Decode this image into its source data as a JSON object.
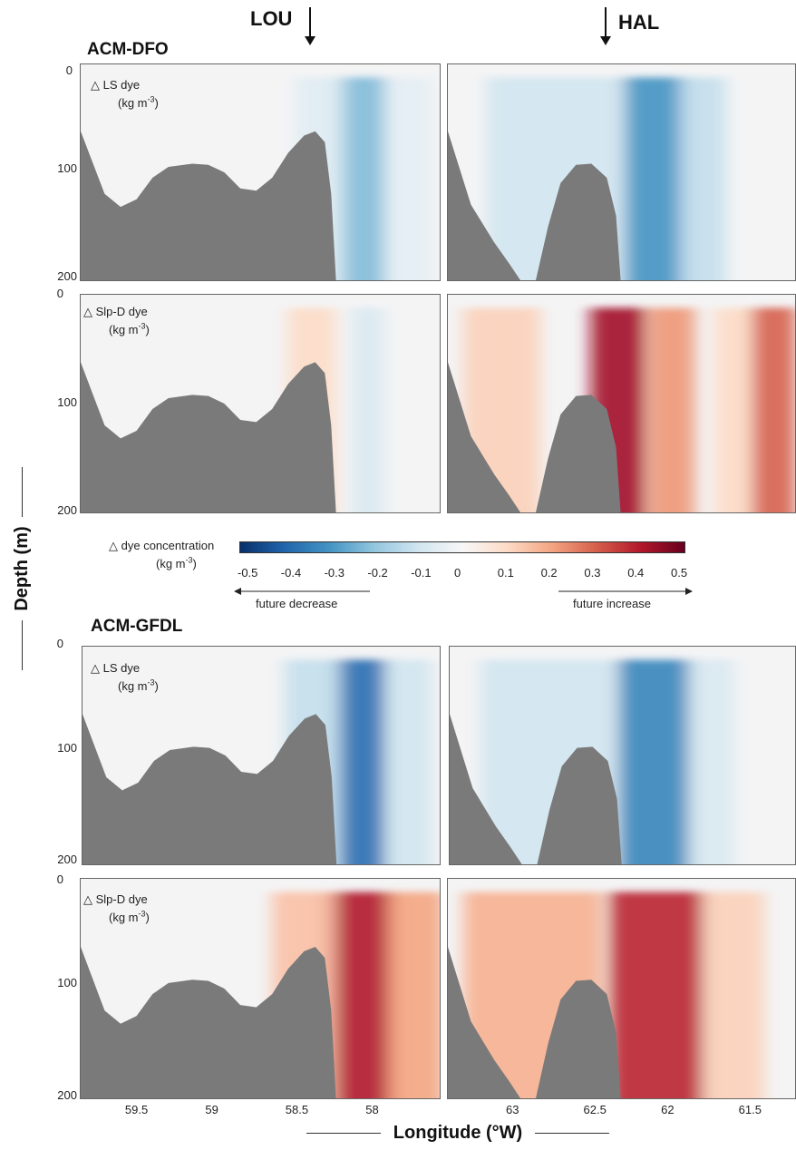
{
  "arrows": {
    "left": "LOU",
    "right": "HAL"
  },
  "groups": [
    {
      "title": "ACM-DFO"
    },
    {
      "title": "ACM-GFDL"
    }
  ],
  "dye_labels": {
    "ls": {
      "line1": "LS dye",
      "line2": "(kg m",
      "sup": "-3",
      "close": ")"
    },
    "slp": {
      "line1": "Slp-D dye",
      "line2": "(kg m",
      "sup": "-3",
      "close": ")"
    }
  },
  "y_axis": {
    "title": "Depth (m)"
  },
  "x_axis": {
    "title": "Longitude (°W)"
  },
  "colorbar": {
    "title_line1": "dye concentration",
    "title_line2": "(kg m",
    "sup": "-3",
    "close": ")",
    "ticks": [
      "-0.5",
      "-0.4",
      "-0.3",
      "-0.2",
      "-0.1",
      "0",
      "0.1",
      "0.2",
      "0.3",
      "0.4",
      "0.5"
    ],
    "decrease_label": "future decrease",
    "increase_label": "future increase",
    "colors": [
      "#08306b",
      "#2166ac",
      "#4393c3",
      "#92c5de",
      "#d1e5f0",
      "#f7f7f7",
      "#fddbc7",
      "#f4a582",
      "#d6604d",
      "#b2182b",
      "#67001f"
    ]
  },
  "chart_data": {
    "type": "heatmap",
    "y_ticks": [
      "0",
      "100",
      "200"
    ],
    "ylim": [
      0,
      200
    ],
    "left_xticks": [
      "59.5",
      "59",
      "58.5",
      "58"
    ],
    "right_xticks": [
      "63",
      "62.5",
      "62",
      "61.5"
    ],
    "left_xlim": [
      59.85,
      57.6
    ],
    "right_xlim": [
      63.45,
      61.2
    ],
    "colors": {
      "bathymetry": "#7a7a7a",
      "background": "#f4f4f5"
    },
    "panels": [
      {
        "group": "ACM-DFO",
        "dye": "LS",
        "side": "left",
        "bands": [
          {
            "x": 58.1,
            "w": 0.35,
            "v": -0.22
          },
          {
            "x": 58.35,
            "w": 0.3,
            "v": -0.06
          },
          {
            "x": 57.8,
            "w": 0.3,
            "v": -0.05
          }
        ]
      },
      {
        "group": "ACM-DFO",
        "dye": "LS",
        "side": "right",
        "bands": [
          {
            "x": 62.1,
            "w": 0.45,
            "v": -0.3
          },
          {
            "x": 62.75,
            "w": 0.9,
            "v": -0.1
          },
          {
            "x": 61.8,
            "w": 0.3,
            "v": -0.12
          }
        ]
      },
      {
        "group": "ACM-DFO",
        "dye": "Slp-D",
        "side": "left",
        "bands": [
          {
            "x": 58.4,
            "w": 0.3,
            "v": 0.1
          },
          {
            "x": 58.05,
            "w": 0.2,
            "v": -0.08
          }
        ]
      },
      {
        "group": "ACM-DFO",
        "dye": "Slp-D",
        "side": "right",
        "bands": [
          {
            "x": 62.35,
            "w": 0.35,
            "v": 0.42
          },
          {
            "x": 62.0,
            "w": 0.3,
            "v": 0.22
          },
          {
            "x": 61.35,
            "w": 0.3,
            "v": 0.3
          },
          {
            "x": 63.1,
            "w": 0.5,
            "v": 0.12
          },
          {
            "x": 61.6,
            "w": 0.25,
            "v": 0.1
          }
        ]
      },
      {
        "group": "ACM-GFDL",
        "dye": "LS",
        "side": "left",
        "bands": [
          {
            "x": 58.1,
            "w": 0.35,
            "v": -0.38
          },
          {
            "x": 58.4,
            "w": 0.35,
            "v": -0.12
          },
          {
            "x": 57.8,
            "w": 0.3,
            "v": -0.1
          }
        ]
      },
      {
        "group": "ACM-GFDL",
        "dye": "LS",
        "side": "right",
        "bands": [
          {
            "x": 62.1,
            "w": 0.5,
            "v": -0.33
          },
          {
            "x": 62.8,
            "w": 0.9,
            "v": -0.1
          },
          {
            "x": 61.75,
            "w": 0.3,
            "v": -0.08
          }
        ]
      },
      {
        "group": "ACM-GFDL",
        "dye": "Slp-D",
        "side": "left",
        "bands": [
          {
            "x": 58.1,
            "w": 0.45,
            "v": 0.4
          },
          {
            "x": 58.45,
            "w": 0.4,
            "v": 0.15
          },
          {
            "x": 57.75,
            "w": 0.35,
            "v": 0.2
          }
        ]
      },
      {
        "group": "ACM-GFDL",
        "dye": "Slp-D",
        "side": "right",
        "bands": [
          {
            "x": 62.1,
            "w": 0.6,
            "v": 0.38
          },
          {
            "x": 62.9,
            "w": 0.9,
            "v": 0.18
          },
          {
            "x": 61.6,
            "w": 0.4,
            "v": 0.12
          }
        ]
      }
    ],
    "bathymetry_left": [
      [
        59.85,
        62
      ],
      [
        59.7,
        120
      ],
      [
        59.6,
        132
      ],
      [
        59.5,
        125
      ],
      [
        59.4,
        105
      ],
      [
        59.3,
        95
      ],
      [
        59.15,
        92
      ],
      [
        59.05,
        93
      ],
      [
        58.95,
        100
      ],
      [
        58.85,
        115
      ],
      [
        58.75,
        117
      ],
      [
        58.65,
        105
      ],
      [
        58.55,
        82
      ],
      [
        58.45,
        66
      ],
      [
        58.38,
        62
      ],
      [
        58.32,
        72
      ],
      [
        58.28,
        120
      ],
      [
        58.25,
        200
      ]
    ],
    "bathymetry_right": [
      [
        63.45,
        62
      ],
      [
        63.3,
        130
      ],
      [
        63.15,
        165
      ],
      [
        63.05,
        185
      ],
      [
        62.98,
        200
      ],
      [
        62.88,
        200
      ],
      [
        62.8,
        150
      ],
      [
        62.72,
        110
      ],
      [
        62.62,
        93
      ],
      [
        62.52,
        92
      ],
      [
        62.42,
        105
      ],
      [
        62.36,
        140
      ],
      [
        62.33,
        200
      ]
    ]
  }
}
